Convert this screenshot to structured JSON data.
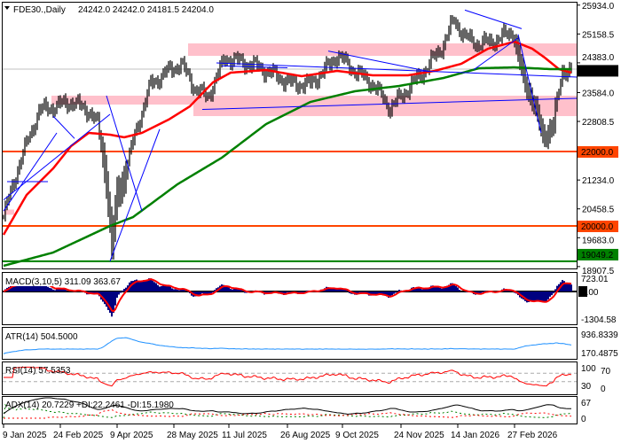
{
  "header": {
    "symbol": "FDE30.,Daily",
    "ohlc": "24242.0 24242.0 24181.5 24204.0"
  },
  "chart_data": {
    "type": "bar",
    "title": "FDE30.,Daily",
    "price_axis": {
      "min": 18907.5,
      "max": 25934.0,
      "ticks": [
        "25934.0",
        "25158.5",
        "24383.0",
        "23584.0",
        "22808.5",
        "21234.0",
        "20458.5",
        "19683.0",
        "18907.5"
      ]
    },
    "current_price": "24204.0",
    "levels": [
      {
        "label": "22000.0",
        "value": 22000,
        "color": "#FF4500"
      },
      {
        "label": "20000.0",
        "value": 20000,
        "color": "#FF4500"
      },
      {
        "label": "19049.2",
        "value": 19049.2,
        "color": "#008000"
      }
    ],
    "zones": [
      {
        "from_bar": 104,
        "to_bar": 323,
        "low": 24571,
        "high": 24905
      },
      {
        "from_bar": 27,
        "to_bar": 107,
        "low": 23262,
        "high": 23500
      },
      {
        "from_bar": 107,
        "to_bar": 323,
        "low": 22952,
        "high": 23500
      },
      {
        "from_bar": 0,
        "to_bar": 6,
        "low": 20300,
        "high": 20440
      }
    ],
    "x_labels": [
      {
        "bar": 0,
        "label": "9 Jan 2025"
      },
      {
        "bar": 32,
        "label": "24 Feb 2025"
      },
      {
        "bar": 64,
        "label": "9 Apr 2025"
      },
      {
        "bar": 96,
        "label": "28 May 2025"
      },
      {
        "bar": 127,
        "label": "11 Jul 2025"
      },
      {
        "bar": 160,
        "label": "26 Aug 2025"
      },
      {
        "bar": 191,
        "label": "9 Oct 2025"
      },
      {
        "bar": 224,
        "label": "24 Nov 2025"
      },
      {
        "bar": 256,
        "label": "14 Jan 2026"
      },
      {
        "bar": 288,
        "label": "27 Feb 2026"
      }
    ],
    "bars_count": 321,
    "close_waypoints": [
      [
        0,
        20238
      ],
      [
        8,
        21548
      ],
      [
        20,
        23095
      ],
      [
        38,
        23333
      ],
      [
        48,
        23095
      ],
      [
        53,
        22738
      ],
      [
        58,
        21310
      ],
      [
        61,
        19405
      ],
      [
        64,
        20833
      ],
      [
        68,
        21310
      ],
      [
        75,
        22619
      ],
      [
        83,
        23810
      ],
      [
        93,
        24167
      ],
      [
        100,
        24357
      ],
      [
        108,
        23690
      ],
      [
        115,
        23452
      ],
      [
        125,
        24524
      ],
      [
        143,
        24286
      ],
      [
        153,
        24048
      ],
      [
        163,
        23810
      ],
      [
        173,
        23810
      ],
      [
        183,
        24286
      ],
      [
        188,
        24595
      ],
      [
        198,
        24167
      ],
      [
        208,
        23810
      ],
      [
        218,
        23167
      ],
      [
        228,
        23690
      ],
      [
        238,
        24214
      ],
      [
        248,
        24881
      ],
      [
        254,
        25548
      ],
      [
        260,
        25071
      ],
      [
        268,
        24881
      ],
      [
        278,
        25000
      ],
      [
        287,
        25238
      ],
      [
        293,
        23929
      ],
      [
        298,
        23452
      ],
      [
        304,
        22381
      ],
      [
        310,
        22738
      ],
      [
        315,
        24167
      ],
      [
        320,
        24204
      ]
    ],
    "ma_fast": {
      "color": "#FF0000",
      "waypoints": [
        [
          0,
          19762
        ],
        [
          13,
          20833
        ],
        [
          28,
          21548
        ],
        [
          38,
          22143
        ],
        [
          48,
          22500
        ],
        [
          60,
          22452
        ],
        [
          68,
          22381
        ],
        [
          78,
          22500
        ],
        [
          93,
          22857
        ],
        [
          105,
          23214
        ],
        [
          118,
          23857
        ],
        [
          128,
          24119
        ],
        [
          148,
          24190
        ],
        [
          168,
          24024
        ],
        [
          188,
          24167
        ],
        [
          208,
          24048
        ],
        [
          228,
          24048
        ],
        [
          243,
          24167
        ],
        [
          258,
          24357
        ],
        [
          273,
          24762
        ],
        [
          288,
          24952
        ],
        [
          298,
          24762
        ],
        [
          305,
          24524
        ],
        [
          313,
          24214
        ],
        [
          320,
          24119
        ]
      ]
    },
    "ma_slow": {
      "color": "#008000",
      "waypoints": [
        [
          0,
          18929
        ],
        [
          28,
          19286
        ],
        [
          60,
          20000
        ],
        [
          73,
          20238
        ],
        [
          98,
          21119
        ],
        [
          123,
          21833
        ],
        [
          148,
          22738
        ],
        [
          173,
          23333
        ],
        [
          198,
          23619
        ],
        [
          223,
          23762
        ],
        [
          248,
          23976
        ],
        [
          268,
          24238
        ],
        [
          288,
          24262
        ],
        [
          308,
          24214
        ],
        [
          320,
          24214
        ]
      ]
    },
    "trendlines": [
      [
        [
          0,
          20700
        ],
        [
          60,
          23000
        ]
      ],
      [
        [
          0,
          20400
        ],
        [
          30,
          22500
        ]
      ],
      [
        [
          2,
          21190
        ],
        [
          25,
          21190
        ]
      ],
      [
        [
          28,
          22950
        ],
        [
          40,
          22350
        ]
      ],
      [
        [
          60,
          19049
        ],
        [
          88,
          22600
        ]
      ],
      [
        [
          58,
          23500
        ],
        [
          78,
          20400
        ]
      ],
      [
        [
          120,
          24380
        ],
        [
          323,
          24000
        ]
      ],
      [
        [
          112,
          23130
        ],
        [
          323,
          23430
        ]
      ],
      [
        [
          123,
          24300
        ],
        [
          160,
          24250
        ]
      ],
      [
        [
          183,
          24700
        ],
        [
          240,
          24150
        ]
      ],
      [
        [
          260,
          25800
        ],
        [
          292,
          25300
        ]
      ],
      [
        [
          265,
          24200
        ],
        [
          290,
          25050
        ]
      ],
      [
        [
          290,
          25150
        ],
        [
          303,
          22500
        ]
      ]
    ],
    "indicators": {
      "macd": {
        "label": "MACD(3,10,5) 311.09 363.67",
        "scale": [
          "723.01",
          "0.00",
          "-1304.58"
        ],
        "max": 723.01,
        "min": -1304.58
      },
      "atr": {
        "label": "ATR(14) 504.5000",
        "scale": [
          "936.8339",
          "170.4875"
        ],
        "max": 936.8339,
        "min": 170.4875
      },
      "rsi": {
        "label": "RSI(14) 57.5353",
        "scale": [
          "100",
          "70",
          "30",
          "0"
        ],
        "levels": [
          70,
          30
        ]
      },
      "adx": {
        "label": "ADX(14) 20.7229 +DI:22.2461 -DI:15.1980",
        "scale": [
          "67",
          "0"
        ],
        "max": 67
      }
    }
  }
}
